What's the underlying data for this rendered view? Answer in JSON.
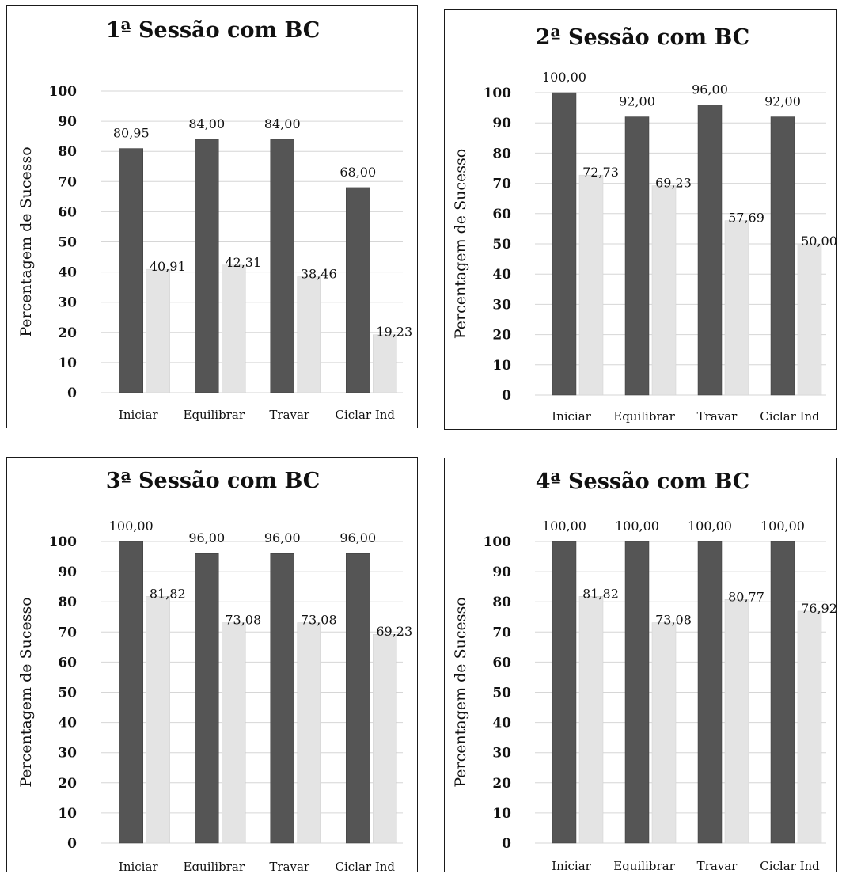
{
  "chart_data": [
    {
      "type": "bar",
      "title": "1ª Sessão com BC",
      "ylabel": "Percentagem de Sucesso",
      "xlabel": "",
      "categories": [
        "Iniciar",
        "Equilibrar",
        "Travar",
        "Ciclar Ind"
      ],
      "series": [
        {
          "values": [
            80.95,
            84.0,
            84.0,
            68.0
          ],
          "labels": [
            "80,95",
            "84,00",
            "84,00",
            "68,00"
          ],
          "color": "#555555"
        },
        {
          "values": [
            40.91,
            42.31,
            38.46,
            19.23
          ],
          "labels": [
            "40,91",
            "42,31",
            "38,46",
            "19,23"
          ],
          "color": "#e4e4e4"
        }
      ],
      "ylim": [
        0,
        100
      ],
      "yticks": [
        "0",
        "10",
        "20",
        "30",
        "40",
        "50",
        "60",
        "70",
        "80",
        "90",
        "100"
      ],
      "grid": true,
      "legend": "none"
    },
    {
      "type": "bar",
      "title": "2ª Sessão com BC",
      "ylabel": "Percentagem de Sucesso",
      "xlabel": "",
      "categories": [
        "Iniciar",
        "Equilibrar",
        "Travar",
        "Ciclar Ind"
      ],
      "series": [
        {
          "values": [
            100.0,
            92.0,
            96.0,
            92.0
          ],
          "labels": [
            "100,00",
            "92,00",
            "96,00",
            "92,00"
          ],
          "color": "#555555"
        },
        {
          "values": [
            72.73,
            69.23,
            57.69,
            50.0
          ],
          "labels": [
            "72,73",
            "69,23",
            "57,69",
            "50,00"
          ],
          "color": "#e4e4e4"
        }
      ],
      "ylim": [
        0,
        100
      ],
      "yticks": [
        "0",
        "10",
        "20",
        "30",
        "40",
        "50",
        "60",
        "70",
        "80",
        "90",
        "100"
      ],
      "grid": true,
      "legend": "none"
    },
    {
      "type": "bar",
      "title": "3ª Sessão com BC",
      "ylabel": "Percentagem de Sucesso",
      "xlabel": "",
      "categories": [
        "Iniciar",
        "Equilibrar",
        "Travar",
        "Ciclar Ind"
      ],
      "series": [
        {
          "values": [
            100.0,
            96.0,
            96.0,
            96.0
          ],
          "labels": [
            "100,00",
            "96,00",
            "96,00",
            "96,00"
          ],
          "color": "#555555"
        },
        {
          "values": [
            81.82,
            73.08,
            73.08,
            69.23
          ],
          "labels": [
            "81,82",
            "73,08",
            "73,08",
            "69,23"
          ],
          "color": "#e4e4e4"
        }
      ],
      "ylim": [
        0,
        100
      ],
      "yticks": [
        "0",
        "10",
        "20",
        "30",
        "40",
        "50",
        "60",
        "70",
        "80",
        "90",
        "100"
      ],
      "grid": true,
      "legend": "none"
    },
    {
      "type": "bar",
      "title": "4ª Sessão com BC",
      "ylabel": "Percentagem de Sucesso",
      "xlabel": "",
      "categories": [
        "Iniciar",
        "Equilibrar",
        "Travar",
        "Ciclar Ind"
      ],
      "series": [
        {
          "values": [
            100.0,
            100.0,
            100.0,
            100.0
          ],
          "labels": [
            "100,00",
            "100,00",
            "100,00",
            "100,00"
          ],
          "color": "#555555"
        },
        {
          "values": [
            81.82,
            73.08,
            80.77,
            76.92
          ],
          "labels": [
            "81,82",
            "73,08",
            "80,77",
            "76,92"
          ],
          "color": "#e4e4e4"
        }
      ],
      "ylim": [
        0,
        100
      ],
      "yticks": [
        "0",
        "10",
        "20",
        "30",
        "40",
        "50",
        "60",
        "70",
        "80",
        "90",
        "100"
      ],
      "grid": true,
      "legend": "none"
    }
  ]
}
